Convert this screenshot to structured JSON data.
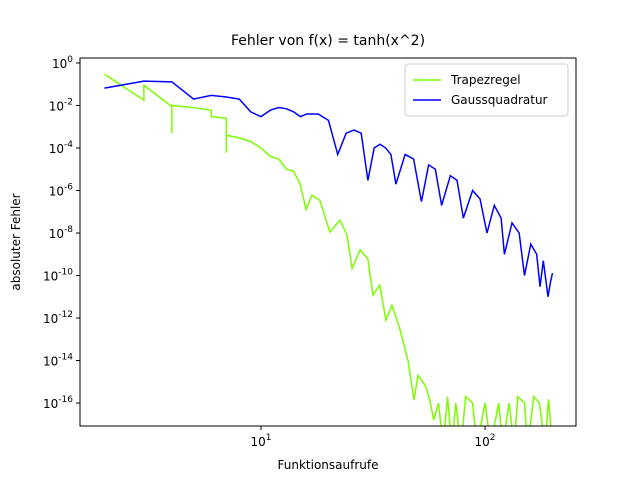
{
  "chart_data": {
    "type": "line",
    "title": "Fehler von f(x) = tanh(x^2)",
    "xlabel": "Funktionsaufrufe",
    "ylabel": "absoluter Fehler",
    "xscale": "log",
    "yscale": "log",
    "legend": "upper right",
    "xlim": [
      1.556,
      254.7
    ],
    "ylim": [
      8.3e-18,
      1.72
    ],
    "xticks": [
      {
        "value": 10,
        "label": "10^1"
      },
      {
        "value": 100,
        "label": "10^2"
      }
    ],
    "yticks": [
      {
        "value": 1,
        "label": "10^0"
      },
      {
        "value": 0.01,
        "label": "10^-2"
      },
      {
        "value": 0.0001,
        "label": "10^-4"
      },
      {
        "value": 1e-06,
        "label": "10^-6"
      },
      {
        "value": 1e-08,
        "label": "10^-8"
      },
      {
        "value": 1e-10,
        "label": "10^-10"
      },
      {
        "value": 1e-12,
        "label": "10^-12"
      },
      {
        "value": 1e-14,
        "label": "10^-14"
      },
      {
        "value": 1e-16,
        "label": "10^-16"
      }
    ],
    "series": [
      {
        "name": "Trapezregel",
        "color": "#7cfc00",
        "x": [
          2,
          3,
          3,
          4,
          4,
          4,
          5,
          6,
          6,
          7,
          7,
          7,
          8,
          9,
          10,
          11,
          12,
          13,
          14,
          14.9,
          15.9,
          16.9,
          18.3,
          20.3,
          22.5,
          24.2,
          25.5,
          27.7,
          30,
          31.6,
          33.9,
          36.1,
          38.4,
          41.7,
          45.3,
          48.2,
          50.2,
          54,
          56.7,
          59,
          62,
          65,
          68,
          71,
          74,
          78,
          82,
          88,
          92,
          100,
          106,
          115,
          120,
          128,
          135,
          140,
          150,
          155,
          165,
          175,
          185,
          192,
          200
        ],
        "values": [
          0.3,
          0.018,
          0.09,
          0.009,
          0.0005,
          0.01,
          0.008,
          0.006,
          0.003,
          0.0025,
          6e-05,
          0.0004,
          0.0003,
          0.0002,
          0.0001,
          4e-05,
          3e-05,
          1e-05,
          8e-06,
          2.2e-06,
          1.3e-07,
          6e-07,
          3.5e-07,
          1.1e-08,
          4e-08,
          8e-09,
          2.2e-10,
          1.6e-09,
          6e-10,
          1.2e-11,
          3.5e-11,
          8e-13,
          4e-12,
          3e-13,
          1e-14,
          1.4e-16,
          2e-15,
          7e-16,
          1.4e-16,
          1.6e-17,
          1e-16,
          1e-18,
          2e-16,
          1e-18,
          1e-16,
          1e-18,
          2e-16,
          1e-16,
          1e-18,
          1e-16,
          1e-18,
          1e-16,
          1e-18,
          1e-16,
          1e-18,
          2e-16,
          1e-16,
          1e-18,
          2e-16,
          1e-16,
          1e-18,
          1.5e-16,
          1e-18
        ]
      },
      {
        "name": "Gaussquadratur",
        "color": "#0000ff",
        "x": [
          2,
          3,
          4,
          5,
          6,
          7,
          8,
          9,
          10,
          11,
          12,
          13,
          14,
          15,
          16,
          18,
          20,
          22,
          24,
          26,
          28,
          30,
          32,
          34,
          36,
          38,
          40,
          44,
          48,
          52,
          56,
          60,
          64,
          70,
          75,
          80,
          88,
          95,
          102,
          110,
          118,
          122,
          132,
          142,
          150,
          160,
          170,
          176,
          182,
          191,
          196,
          200
        ],
        "values": [
          0.066,
          0.14,
          0.13,
          0.02,
          0.03,
          0.025,
          0.02,
          0.005,
          0.003,
          0.006,
          0.008,
          0.007,
          0.005,
          0.003,
          0.004,
          0.004,
          0.002,
          5e-05,
          0.0005,
          0.0007,
          0.0005,
          3e-06,
          0.0001,
          0.00015,
          0.0001,
          5e-05,
          2e-06,
          5e-05,
          3e-05,
          3e-07,
          1.6e-05,
          1e-05,
          2e-07,
          5e-06,
          3e-06,
          5e-08,
          1e-06,
          4e-07,
          1e-08,
          2e-07,
          5e-08,
          1e-09,
          3e-08,
          1e-08,
          1e-10,
          3e-09,
          1e-09,
          3e-11,
          5e-10,
          1e-11,
          5e-11,
          1.3e-10
        ]
      }
    ]
  }
}
